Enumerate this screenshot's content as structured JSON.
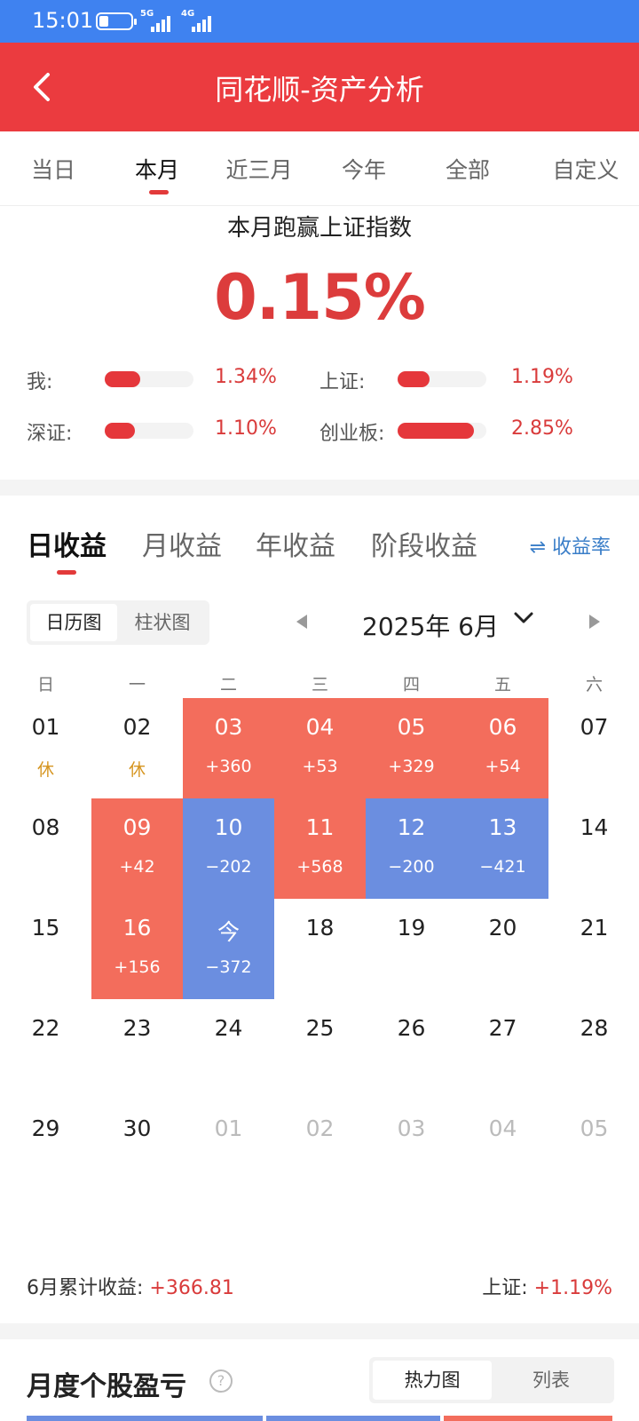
{
  "status_bar": {
    "time": "15:01",
    "net1": "5G",
    "net2": "4G"
  },
  "header": {
    "title": "同花顺-资产分析"
  },
  "period_tabs": [
    {
      "label": "当日",
      "active": false
    },
    {
      "label": "本月",
      "active": true
    },
    {
      "label": "近三月",
      "active": false
    },
    {
      "label": "今年",
      "active": false
    },
    {
      "label": "全部",
      "active": false
    },
    {
      "label": "自定义",
      "active": false
    }
  ],
  "comparison": {
    "title": "本月跑赢上证指数",
    "value": "0.15%",
    "items": [
      {
        "name": "我:",
        "pct": "1.34%",
        "ratio": 0.47
      },
      {
        "name": "上证:",
        "pct": "1.19%",
        "ratio": 0.42
      },
      {
        "name": "深证:",
        "pct": "1.10%",
        "ratio": 0.39
      },
      {
        "name": "创业板:",
        "pct": "2.85%",
        "ratio": 1.0
      }
    ]
  },
  "income_tabs": [
    {
      "label": "日收益",
      "active": true
    },
    {
      "label": "月收益",
      "active": false
    },
    {
      "label": "年收益",
      "active": false
    },
    {
      "label": "阶段收益",
      "active": false
    }
  ],
  "rate_toggle": {
    "icon": "swap-icon",
    "label": "⇌ 收益率"
  },
  "view_toggle": {
    "calendar": "日历图",
    "bar": "柱状图"
  },
  "month": {
    "label": "2025年 6月"
  },
  "weekdays": [
    "日",
    "一",
    "二",
    "三",
    "四",
    "五",
    "六"
  ],
  "calendar": [
    [
      {
        "d": "01",
        "s": "休",
        "t": "rest"
      },
      {
        "d": "02",
        "s": "休",
        "t": "rest"
      },
      {
        "d": "03",
        "s": "+360",
        "t": "pos"
      },
      {
        "d": "04",
        "s": "+53",
        "t": "pos"
      },
      {
        "d": "05",
        "s": "+329",
        "t": "pos"
      },
      {
        "d": "06",
        "s": "+54",
        "t": "pos"
      },
      {
        "d": "07",
        "s": "",
        "t": "none"
      }
    ],
    [
      {
        "d": "08",
        "s": "",
        "t": "none"
      },
      {
        "d": "09",
        "s": "+42",
        "t": "pos"
      },
      {
        "d": "10",
        "s": "−202",
        "t": "neg"
      },
      {
        "d": "11",
        "s": "+568",
        "t": "pos"
      },
      {
        "d": "12",
        "s": "−200",
        "t": "neg"
      },
      {
        "d": "13",
        "s": "−421",
        "t": "neg"
      },
      {
        "d": "14",
        "s": "",
        "t": "none"
      }
    ],
    [
      {
        "d": "15",
        "s": "",
        "t": "none"
      },
      {
        "d": "16",
        "s": "+156",
        "t": "pos"
      },
      {
        "d": "今",
        "s": "−372",
        "t": "neg"
      },
      {
        "d": "18",
        "s": "",
        "t": "none"
      },
      {
        "d": "19",
        "s": "",
        "t": "none"
      },
      {
        "d": "20",
        "s": "",
        "t": "none"
      },
      {
        "d": "21",
        "s": "",
        "t": "none"
      }
    ],
    [
      {
        "d": "22",
        "s": "",
        "t": "none"
      },
      {
        "d": "23",
        "s": "",
        "t": "none"
      },
      {
        "d": "24",
        "s": "",
        "t": "none"
      },
      {
        "d": "25",
        "s": "",
        "t": "none"
      },
      {
        "d": "26",
        "s": "",
        "t": "none"
      },
      {
        "d": "27",
        "s": "",
        "t": "none"
      },
      {
        "d": "28",
        "s": "",
        "t": "none"
      }
    ],
    [
      {
        "d": "29",
        "s": "",
        "t": "none"
      },
      {
        "d": "30",
        "s": "",
        "t": "none"
      },
      {
        "d": "01",
        "s": "",
        "t": "muted"
      },
      {
        "d": "02",
        "s": "",
        "t": "muted"
      },
      {
        "d": "03",
        "s": "",
        "t": "muted"
      },
      {
        "d": "04",
        "s": "",
        "t": "muted"
      },
      {
        "d": "05",
        "s": "",
        "t": "muted"
      }
    ]
  ],
  "summary": {
    "label": "6月累计收益:",
    "value": "+366.81",
    "index_label": "上证:",
    "index_value": "+1.19%"
  },
  "bottom": {
    "title": "月度个股盈亏",
    "help_icon": "?",
    "tab_on": "热力图",
    "tab_off": "列表"
  },
  "colors": {
    "header_red": "#eb3b3f",
    "status_blue": "#3f82f0",
    "gain": "#f36d5c",
    "loss": "#6b8ee0",
    "text_red": "#d93b3b"
  }
}
